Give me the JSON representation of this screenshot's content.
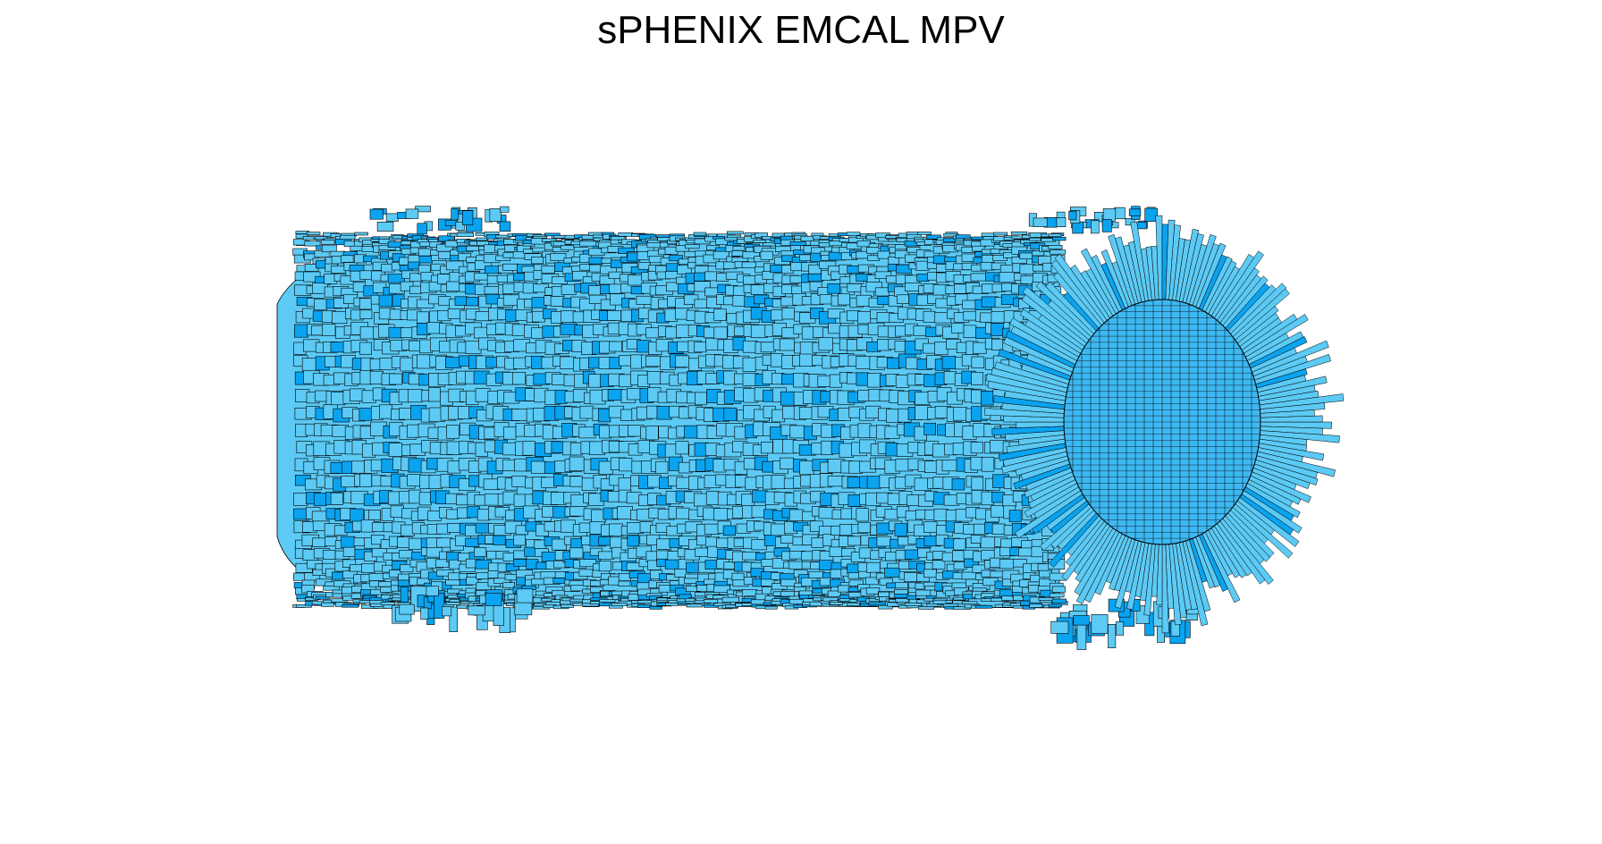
{
  "chart_data": {
    "type": "3d-lego-histogram",
    "title": "sPHENIX EMCAL MPV",
    "geometry": "cylindrical barrel (eta x phi towers)",
    "colors": {
      "tower_light": "#5ccaf4",
      "tower_dark": "#0aa3ef",
      "tower_side": "#3db8f2",
      "outline": "#000000",
      "background": "#ffffff"
    },
    "axes_shown": false,
    "grid": false,
    "legend": "none",
    "n_eta_bins": 96,
    "n_phi_bins": 256
  }
}
